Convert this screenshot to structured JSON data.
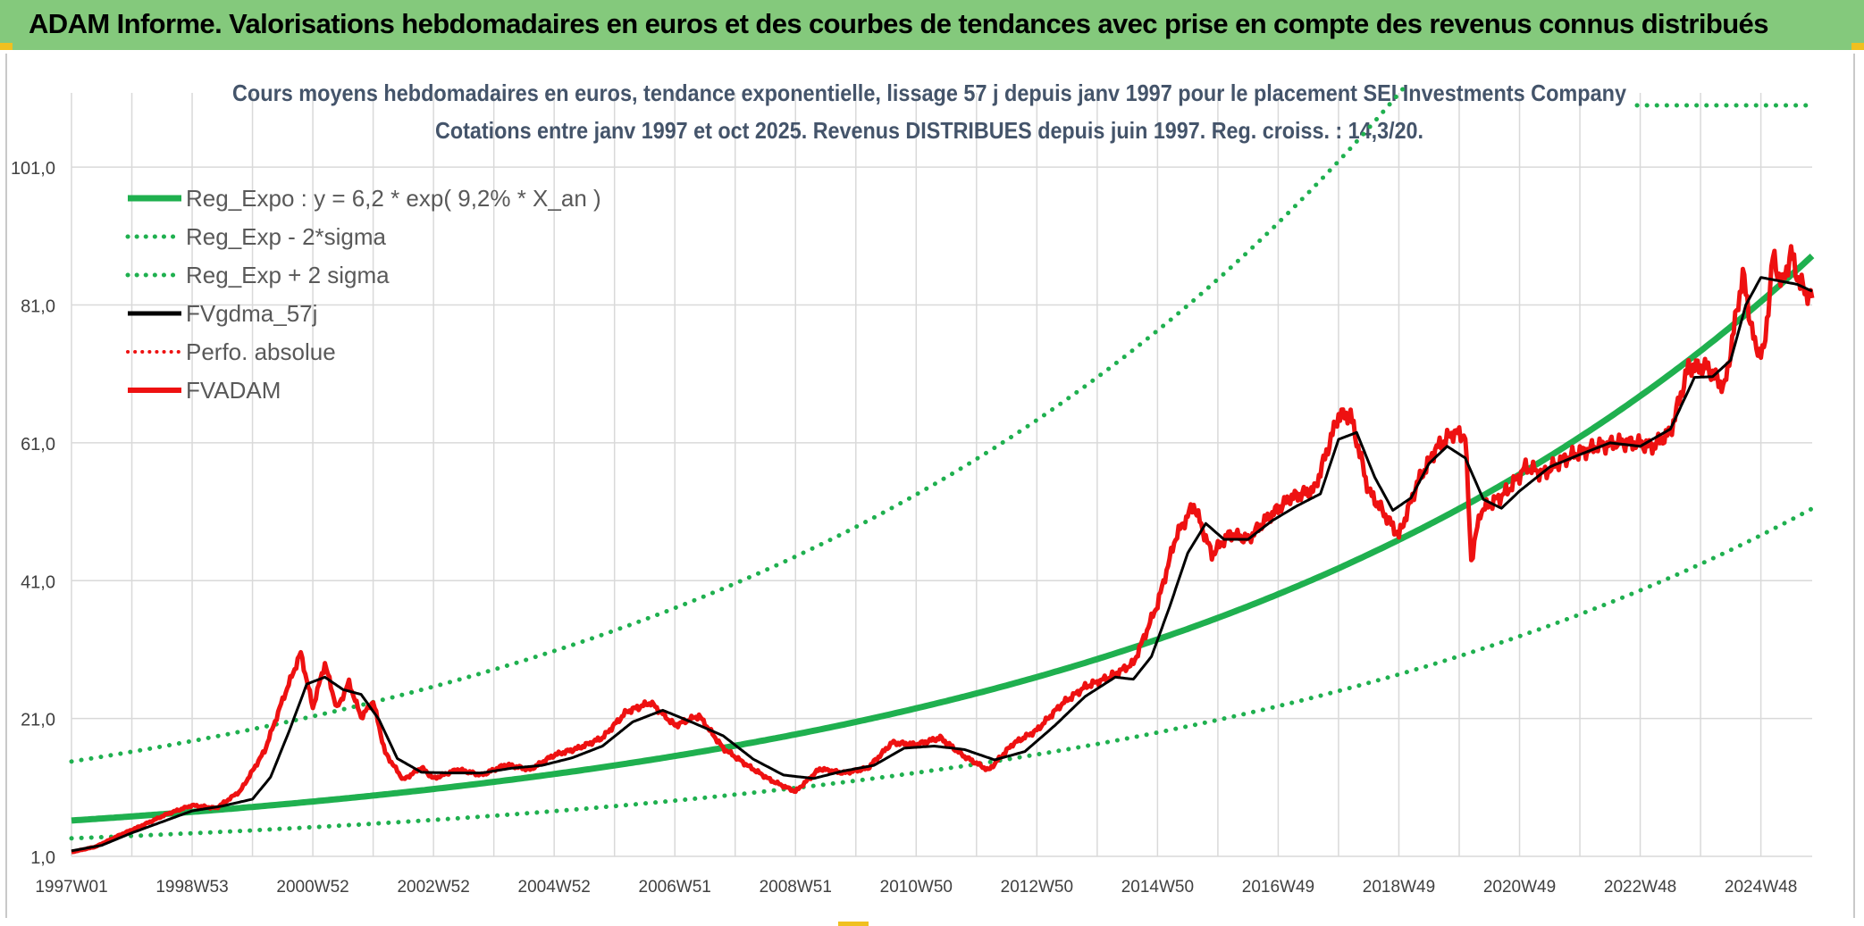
{
  "header": {
    "banner_title": "ADAM Informe. Valorisations hebdomadaires en euros et des courbes de tendances avec prise en compte des revenus connus distribués"
  },
  "colors": {
    "banner_bg": "#84c97c",
    "reg_expo": "#1fb04f",
    "sigma": "#1fb04f",
    "fvgdma": "#000000",
    "fvadam": "#ee1111",
    "perfo": "#ee1111",
    "grid": "#d9d9d9"
  },
  "chart_data": {
    "type": "line",
    "title_line1": "Cours moyens hebdomadaires en euros, tendance exponentielle, lissage 57 j depuis janv 1997 pour le placement SEI Investments Company",
    "title_line2": "Cotations entre janv 1997 et oct 2025. Revenus DISTRIBUES depuis juin 1997. Reg. croiss. : 14,3/20.",
    "ylim": [
      1,
      111
    ],
    "yticks": [
      "101,0",
      "81,0",
      "61,0",
      "41,0",
      "21,0",
      "1,0"
    ],
    "ytick_values": [
      101,
      81,
      61,
      41,
      21,
      1
    ],
    "xlim": [
      1997.0,
      2025.85
    ],
    "xticks": [
      "1997W01",
      "1998W53",
      "2000W52",
      "2002W52",
      "2004W52",
      "2006W51",
      "2008W51",
      "2010W50",
      "2012W50",
      "2014W50",
      "2016W49",
      "2018W49",
      "2020W49",
      "2022W48",
      "2024W48"
    ],
    "xtick_years": [
      1997.0,
      1999.0,
      2001.0,
      2003.0,
      2005.0,
      2007.0,
      2009.0,
      2011.0,
      2013.0,
      2015.0,
      2017.0,
      2019.0,
      2021.0,
      2023.0,
      2025.0
    ],
    "legend": [
      {
        "label": "Reg_Expo : y = 6,2 * exp( 9,2% *  X_an )",
        "style": "solid-green"
      },
      {
        "label": "Reg_Exp - 2*sigma",
        "style": "dotted-green"
      },
      {
        "label": "Reg_Exp + 2 sigma",
        "style": "dotted-green"
      },
      {
        "label": "FVgdma_57j",
        "style": "solid-black"
      },
      {
        "label": "Perfo. absolue",
        "style": "dotted-red"
      },
      {
        "label": "FVADAM",
        "style": "solid-red"
      }
    ],
    "regression": {
      "a": 6.2,
      "growth": 0.092,
      "lower_factor": 0.584,
      "upper_factor": 2.38
    },
    "series": [
      {
        "name": "FVADAM",
        "x": [
          1997.0,
          1997.4,
          1997.8,
          1998.2,
          1998.6,
          1999.0,
          1999.4,
          1999.8,
          2000.2,
          2000.5,
          2000.8,
          2001.0,
          2001.2,
          2001.4,
          2001.6,
          2001.8,
          2002.0,
          2002.2,
          2002.5,
          2002.8,
          2003.0,
          2003.4,
          2003.8,
          2004.2,
          2004.6,
          2005.0,
          2005.4,
          2005.8,
          2006.2,
          2006.6,
          2007.0,
          2007.4,
          2007.8,
          2008.2,
          2008.6,
          2009.0,
          2009.4,
          2009.8,
          2010.2,
          2010.6,
          2011.0,
          2011.4,
          2011.8,
          2012.2,
          2012.6,
          2013.0,
          2013.4,
          2013.8,
          2014.2,
          2014.6,
          2015.0,
          2015.3,
          2015.6,
          2015.9,
          2016.2,
          2016.5,
          2016.8,
          2017.2,
          2017.6,
          2018.0,
          2018.2,
          2018.5,
          2018.8,
          2019.0,
          2019.3,
          2019.6,
          2019.9,
          2020.1,
          2020.2,
          2020.35,
          2020.5,
          2020.8,
          2021.1,
          2021.4,
          2021.7,
          2022.0,
          2022.3,
          2022.6,
          2022.9,
          2023.2,
          2023.5,
          2023.8,
          2024.1,
          2024.4,
          2024.7,
          2024.9,
          2025.05,
          2025.2,
          2025.35,
          2025.5,
          2025.65,
          2025.85
        ],
        "y": [
          1.6,
          2.4,
          4.1,
          5.6,
          7.2,
          8.4,
          8.0,
          10.5,
          16.3,
          23.7,
          30.5,
          22.6,
          29.0,
          22.4,
          26.2,
          21.2,
          23.5,
          16.0,
          12.1,
          13.9,
          12.3,
          13.6,
          12.8,
          14.3,
          13.6,
          15.7,
          16.7,
          18.2,
          22.0,
          23.3,
          20.0,
          21.4,
          16.7,
          14.2,
          12.0,
          10.4,
          13.7,
          13.1,
          13.8,
          17.5,
          17.2,
          18.2,
          15.5,
          13.5,
          17.3,
          19.3,
          23.0,
          25.6,
          27.0,
          29.0,
          37.6,
          47.3,
          52.0,
          44.8,
          47.8,
          47.0,
          49.9,
          53.0,
          54.2,
          65.0,
          65.0,
          54.0,
          50.2,
          47.5,
          55.0,
          60.0,
          62.5,
          62.0,
          44.0,
          51.0,
          52.0,
          54.0,
          57.5,
          56.5,
          58.5,
          59.6,
          60.5,
          61.0,
          61.0,
          60.5,
          62.5,
          72.0,
          72.0,
          69.0,
          85.5,
          75.0,
          74.0,
          88.0,
          84.0,
          88.5,
          84.0,
          82.0
        ]
      },
      {
        "name": "FVgdma_57j",
        "x": [
          1997.0,
          1997.5,
          1998.0,
          1998.5,
          1999.0,
          1999.5,
          2000.0,
          2000.3,
          2000.6,
          2000.9,
          2001.2,
          2001.5,
          2001.8,
          2002.1,
          2002.4,
          2002.8,
          2003.3,
          2003.8,
          2004.3,
          2004.8,
          2005.3,
          2005.8,
          2006.3,
          2006.8,
          2007.3,
          2007.8,
          2008.3,
          2008.8,
          2009.3,
          2009.8,
          2010.3,
          2010.8,
          2011.3,
          2011.8,
          2012.3,
          2012.8,
          2013.3,
          2013.8,
          2014.3,
          2014.6,
          2014.9,
          2015.2,
          2015.5,
          2015.8,
          2016.1,
          2016.5,
          2016.9,
          2017.3,
          2017.7,
          2018.0,
          2018.3,
          2018.6,
          2018.9,
          2019.2,
          2019.5,
          2019.8,
          2020.1,
          2020.4,
          2020.7,
          2021.0,
          2021.5,
          2022.0,
          2022.5,
          2023.0,
          2023.5,
          2023.9,
          2024.2,
          2024.5,
          2024.75,
          2025.0,
          2025.3,
          2025.6,
          2025.85
        ],
        "y": [
          1.8,
          2.6,
          4.4,
          6.0,
          7.6,
          8.3,
          9.3,
          12.5,
          19.0,
          26.0,
          27.0,
          25.2,
          24.5,
          20.8,
          15.2,
          13.2,
          13.1,
          13.1,
          13.8,
          14.2,
          15.3,
          17.0,
          20.5,
          22.2,
          20.4,
          18.5,
          15.1,
          12.8,
          12.3,
          13.4,
          14.2,
          16.7,
          17.0,
          16.5,
          15.0,
          16.2,
          20.0,
          24.2,
          27.0,
          26.7,
          30.0,
          37.2,
          45.0,
          49.3,
          47.0,
          47.0,
          49.7,
          51.8,
          53.6,
          61.5,
          62.5,
          56.0,
          51.2,
          53.0,
          58.0,
          60.5,
          58.8,
          52.8,
          51.5,
          54.0,
          57.5,
          59.3,
          61.0,
          60.5,
          63.0,
          70.5,
          70.6,
          73.0,
          81.0,
          85.0,
          84.5,
          84.0,
          83.0
        ]
      }
    ]
  }
}
